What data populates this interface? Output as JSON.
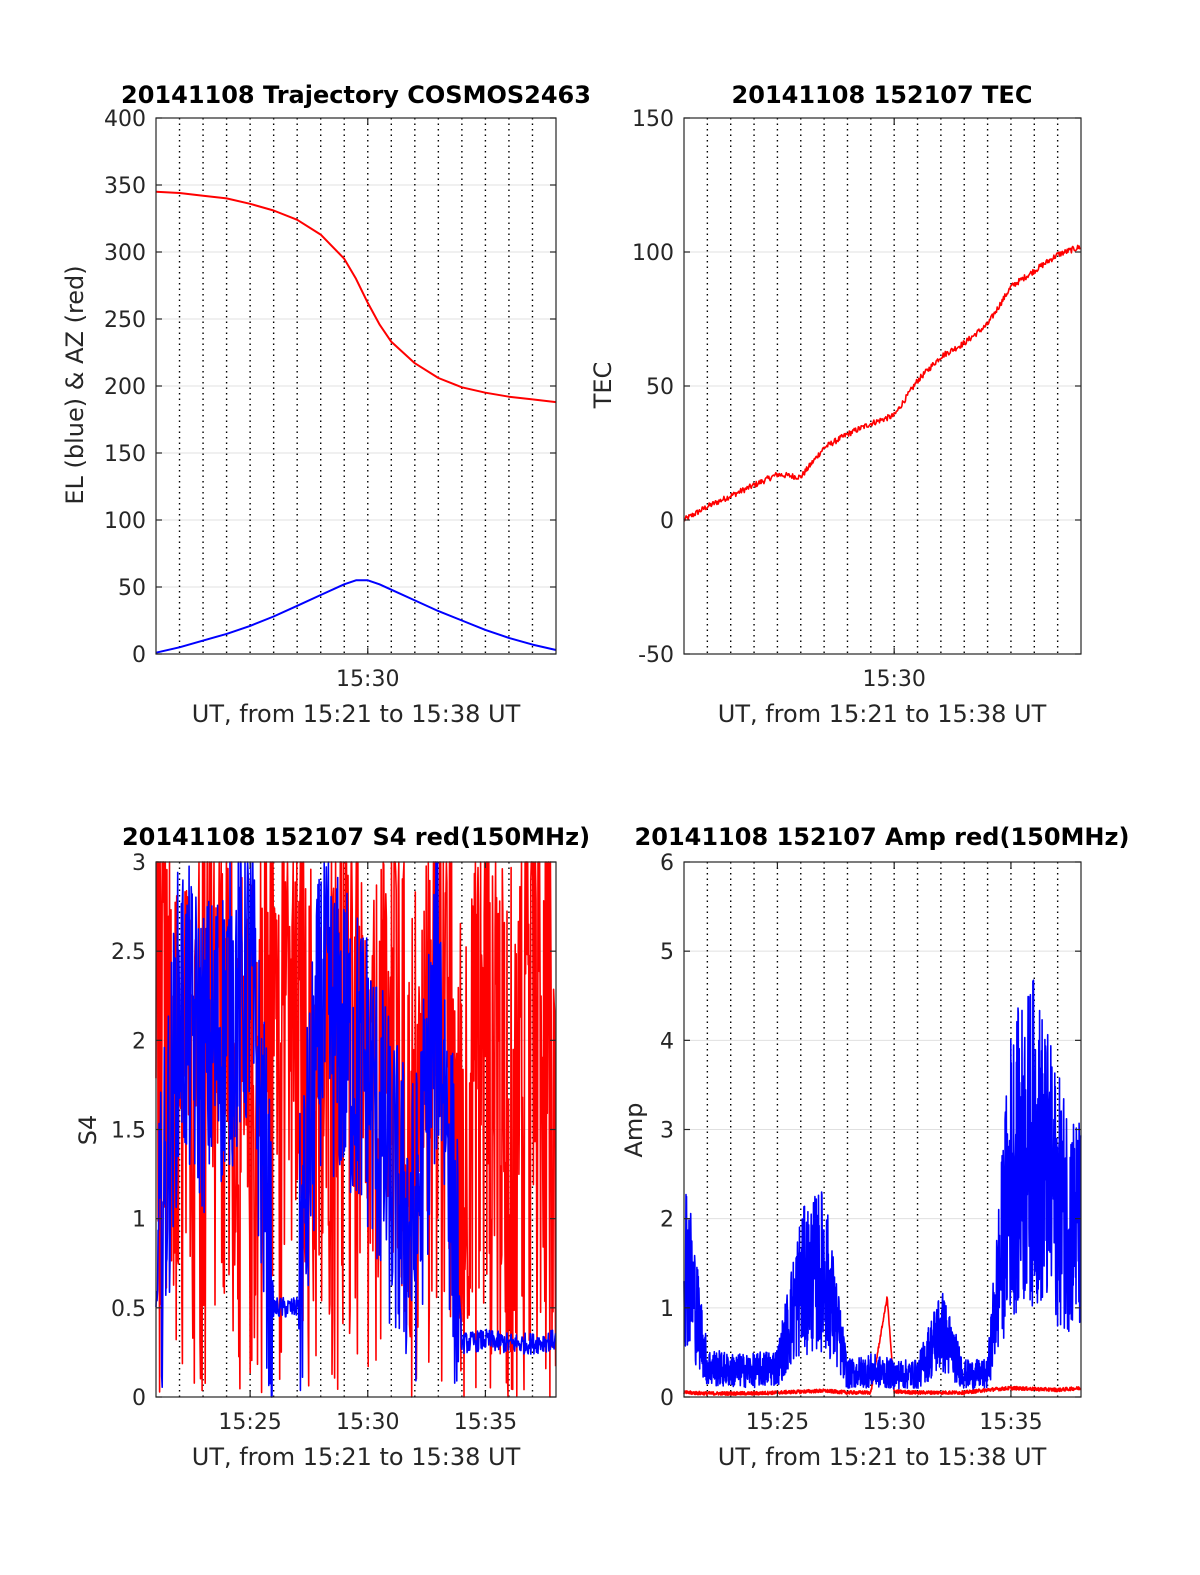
{
  "chart_data": [
    {
      "type": "line",
      "title": "20141108 Trajectory COSMOS2463",
      "xlabel": "UT, from 15:21 to 15:38 UT",
      "ylabel": "EL (blue) & AZ (red)",
      "xlim": [
        "15:21",
        "15:38"
      ],
      "ylim": [
        0,
        400
      ],
      "x_ticks": [
        "15:30"
      ],
      "y_ticks": [
        0,
        50,
        100,
        150,
        200,
        250,
        300,
        350,
        400
      ],
      "grid": true,
      "series_colors": [
        "#ff0000",
        "#0000ff"
      ],
      "series": [
        {
          "x": [
            "15:21",
            "15:22",
            "15:23",
            "15:24",
            "15:25",
            "15:26",
            "15:27",
            "15:28",
            "15:29",
            "15:29.5",
            "15:30",
            "15:30.5",
            "15:31",
            "15:32",
            "15:33",
            "15:34",
            "15:35",
            "15:36",
            "15:37",
            "15:38"
          ],
          "values": [
            345,
            344,
            342,
            340,
            336,
            331,
            324,
            313,
            295,
            280,
            262,
            246,
            233,
            217,
            206,
            199,
            195,
            192,
            190,
            188
          ]
        },
        {
          "x": [
            "15:21",
            "15:22",
            "15:23",
            "15:24",
            "15:25",
            "15:26",
            "15:27",
            "15:28",
            "15:29",
            "15:29.5",
            "15:30",
            "15:30.5",
            "15:31",
            "15:32",
            "15:33",
            "15:34",
            "15:35",
            "15:36",
            "15:37",
            "15:38"
          ],
          "values": [
            1,
            5,
            10,
            15,
            21,
            28,
            36,
            44,
            52,
            55,
            55,
            52,
            48,
            40,
            32,
            25,
            18,
            12,
            7,
            3
          ]
        }
      ]
    },
    {
      "type": "line",
      "title": "20141108 152107 TEC",
      "xlabel": "UT, from 15:21 to 15:38 UT",
      "ylabel": "TEC",
      "xlim": [
        "15:21",
        "15:38"
      ],
      "ylim": [
        -50,
        150
      ],
      "x_ticks": [
        "15:30"
      ],
      "y_ticks": [
        -50,
        0,
        50,
        100,
        150
      ],
      "grid": true,
      "series_colors": [
        "#ff0000"
      ],
      "series": [
        {
          "x": [
            "15:21",
            "15:22",
            "15:23",
            "15:24",
            "15:25",
            "15:26",
            "15:27",
            "15:28",
            "15:29",
            "15:30",
            "15:31",
            "15:32",
            "15:33",
            "15:34",
            "15:35",
            "15:36",
            "15:37",
            "15:38"
          ],
          "values": [
            0,
            5,
            9,
            13,
            17,
            16,
            27,
            32,
            36,
            39,
            52,
            61,
            66,
            73,
            87,
            93,
            99,
            102
          ]
        }
      ]
    },
    {
      "type": "line",
      "title": "20141108 152107 S4 red(150MHz)",
      "xlabel": "UT, from 15:21 to 15:38 UT",
      "ylabel": "S4",
      "xlim": [
        "15:21",
        "15:38"
      ],
      "ylim": [
        0,
        3
      ],
      "x_ticks": [
        "15:25",
        "15:30",
        "15:35"
      ],
      "y_ticks": [
        0,
        0.5,
        1,
        1.5,
        2,
        2.5,
        3
      ],
      "grid": true,
      "series_colors": [
        "#ff0000",
        "#0000ff"
      ],
      "series": [
        {
          "x": [
            "15:21",
            "15:22",
            "15:23",
            "15:24",
            "15:25",
            "15:26",
            "15:27",
            "15:28",
            "15:29",
            "15:30",
            "15:31",
            "15:32",
            "15:33",
            "15:34",
            "15:35",
            "15:36",
            "15:37",
            "15:38"
          ],
          "values": [
            3.0,
            0.2,
            2.6,
            1.6,
            0.4,
            2.9,
            1.5,
            0.8,
            2.5,
            0.3,
            2.2,
            0.1,
            2.8,
            0.0,
            3.0,
            0.0,
            3.0,
            3.0
          ]
        },
        {
          "x": [
            "15:21",
            "15:22",
            "15:23",
            "15:24",
            "15:25",
            "15:26",
            "15:27",
            "15:28",
            "15:29",
            "15:30",
            "15:31",
            "15:32",
            "15:33",
            "15:34",
            "15:35",
            "15:36",
            "15:37",
            "15:38"
          ],
          "values": [
            0.5,
            2.2,
            1.9,
            2.1,
            2.4,
            0.5,
            0.5,
            2.2,
            2.0,
            1.8,
            1.2,
            0.9,
            2.3,
            0.3,
            0.32,
            0.3,
            0.3,
            0.32
          ]
        }
      ]
    },
    {
      "type": "line",
      "title": "20141108 152107 Amp red(150MHz)",
      "xlabel": "UT, from 15:21 to 15:38 UT",
      "ylabel": "Amp",
      "xlim": [
        "15:21",
        "15:38"
      ],
      "ylim": [
        0,
        6
      ],
      "x_ticks": [
        "15:25",
        "15:30",
        "15:35"
      ],
      "y_ticks": [
        0,
        1,
        2,
        3,
        4,
        5,
        6
      ],
      "grid": true,
      "series_colors": [
        "#ff0000",
        "#0000ff"
      ],
      "series": [
        {
          "x": [
            "15:21",
            "15:22",
            "15:23",
            "15:24",
            "15:25",
            "15:26",
            "15:27",
            "15:28",
            "15:29",
            "15:29.7",
            "15:30",
            "15:31",
            "15:32",
            "15:33",
            "15:34",
            "15:35",
            "15:36",
            "15:37",
            "15:38"
          ],
          "values": [
            0.03,
            0.02,
            0.02,
            0.02,
            0.03,
            0.04,
            0.05,
            0.03,
            0.03,
            1.1,
            0.04,
            0.03,
            0.03,
            0.03,
            0.06,
            0.08,
            0.07,
            0.06,
            0.08
          ]
        },
        {
          "x": [
            "15:21",
            "15:22",
            "15:23",
            "15:24",
            "15:25",
            "15:26",
            "15:27",
            "15:28",
            "15:29",
            "15:30",
            "15:31",
            "15:32",
            "15:33",
            "15:34",
            "15:35",
            "15:36",
            "15:37",
            "15:38"
          ],
          "values": [
            2.0,
            0.4,
            0.35,
            0.35,
            0.4,
            1.5,
            1.7,
            0.3,
            0.35,
            0.3,
            0.3,
            0.9,
            0.3,
            0.3,
            3.0,
            3.4,
            2.6,
            2.2
          ]
        }
      ]
    }
  ]
}
